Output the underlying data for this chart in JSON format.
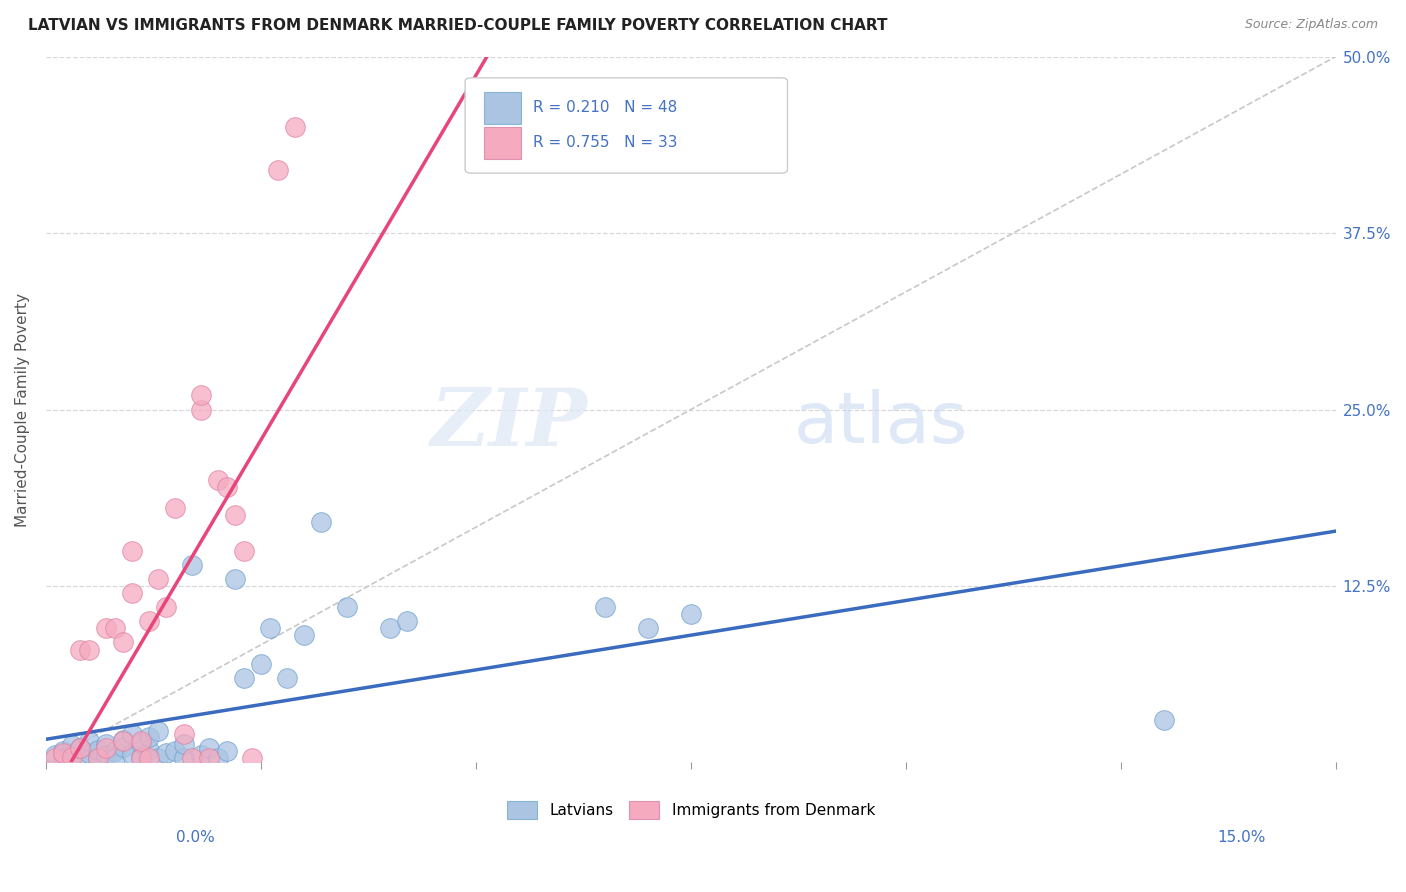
{
  "title": "LATVIAN VS IMMIGRANTS FROM DENMARK MARRIED-COUPLE FAMILY POVERTY CORRELATION CHART",
  "source": "Source: ZipAtlas.com",
  "ylabel": "Married-Couple Family Poverty",
  "ytick_labels": [
    "12.5%",
    "25.0%",
    "37.5%",
    "50.0%"
  ],
  "ytick_values": [
    0.125,
    0.25,
    0.375,
    0.5
  ],
  "xlim": [
    0.0,
    0.15
  ],
  "ylim": [
    0.0,
    0.5
  ],
  "legend_r1": "0.210",
  "legend_n1": "48",
  "legend_r2": "0.755",
  "legend_n2": "33",
  "color_latvian": "#aac4e2",
  "color_denmark": "#f5aabf",
  "color_latvian_line": "#3a6bbf",
  "color_denmark_line": "#e8457a",
  "color_diagonal": "#c8c8c8",
  "watermark_zip": "ZIP",
  "watermark_atlas": "atlas",
  "scatter_latvians": [
    [
      0.001,
      0.005
    ],
    [
      0.002,
      0.008
    ],
    [
      0.002,
      0.003
    ],
    [
      0.003,
      0.006
    ],
    [
      0.003,
      0.012
    ],
    [
      0.004,
      0.004
    ],
    [
      0.004,
      0.01
    ],
    [
      0.005,
      0.007
    ],
    [
      0.005,
      0.015
    ],
    [
      0.006,
      0.003
    ],
    [
      0.006,
      0.009
    ],
    [
      0.007,
      0.013
    ],
    [
      0.007,
      0.005
    ],
    [
      0.008,
      0.008
    ],
    [
      0.008,
      0.003
    ],
    [
      0.009,
      0.011
    ],
    [
      0.009,
      0.016
    ],
    [
      0.01,
      0.006
    ],
    [
      0.01,
      0.02
    ],
    [
      0.011,
      0.004
    ],
    [
      0.011,
      0.014
    ],
    [
      0.012,
      0.009
    ],
    [
      0.012,
      0.018
    ],
    [
      0.013,
      0.003
    ],
    [
      0.013,
      0.022
    ],
    [
      0.014,
      0.007
    ],
    [
      0.015,
      0.008
    ],
    [
      0.016,
      0.003
    ],
    [
      0.016,
      0.013
    ],
    [
      0.017,
      0.14
    ],
    [
      0.018,
      0.005
    ],
    [
      0.019,
      0.01
    ],
    [
      0.02,
      0.003
    ],
    [
      0.021,
      0.008
    ],
    [
      0.022,
      0.13
    ],
    [
      0.023,
      0.06
    ],
    [
      0.025,
      0.07
    ],
    [
      0.026,
      0.095
    ],
    [
      0.028,
      0.06
    ],
    [
      0.03,
      0.09
    ],
    [
      0.032,
      0.17
    ],
    [
      0.035,
      0.11
    ],
    [
      0.04,
      0.095
    ],
    [
      0.042,
      0.1
    ],
    [
      0.065,
      0.11
    ],
    [
      0.07,
      0.095
    ],
    [
      0.075,
      0.105
    ],
    [
      0.13,
      0.03
    ]
  ],
  "scatter_denmark": [
    [
      0.001,
      0.003
    ],
    [
      0.002,
      0.007
    ],
    [
      0.003,
      0.004
    ],
    [
      0.004,
      0.01
    ],
    [
      0.004,
      0.08
    ],
    [
      0.005,
      0.08
    ],
    [
      0.006,
      0.003
    ],
    [
      0.007,
      0.01
    ],
    [
      0.007,
      0.095
    ],
    [
      0.008,
      0.095
    ],
    [
      0.009,
      0.015
    ],
    [
      0.009,
      0.085
    ],
    [
      0.01,
      0.12
    ],
    [
      0.01,
      0.15
    ],
    [
      0.011,
      0.003
    ],
    [
      0.011,
      0.015
    ],
    [
      0.012,
      0.1
    ],
    [
      0.012,
      0.003
    ],
    [
      0.013,
      0.13
    ],
    [
      0.014,
      0.11
    ],
    [
      0.015,
      0.18
    ],
    [
      0.016,
      0.02
    ],
    [
      0.017,
      0.003
    ],
    [
      0.018,
      0.25
    ],
    [
      0.018,
      0.26
    ],
    [
      0.019,
      0.003
    ],
    [
      0.02,
      0.2
    ],
    [
      0.021,
      0.195
    ],
    [
      0.022,
      0.175
    ],
    [
      0.023,
      0.15
    ],
    [
      0.024,
      0.003
    ],
    [
      0.027,
      0.42
    ],
    [
      0.029,
      0.45
    ]
  ]
}
